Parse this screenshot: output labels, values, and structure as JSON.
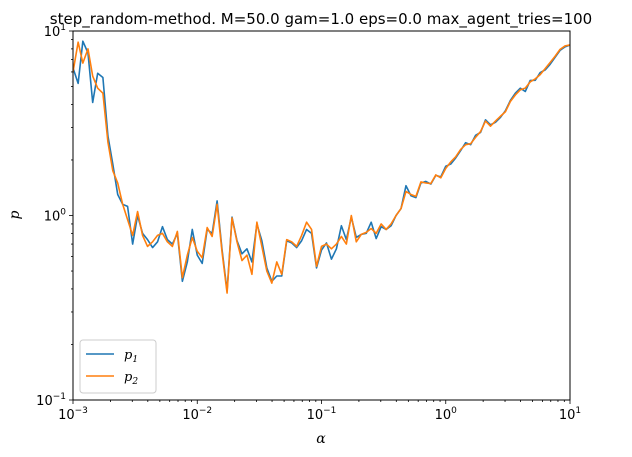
{
  "chart_data": {
    "type": "line",
    "title": "step_random-method. M=50.0 gam=1.0 eps=0.0 max_agent_tries=100",
    "xlabel": "α",
    "ylabel": "p",
    "xscale": "log",
    "yscale": "log",
    "xlim": [
      0.001,
      10
    ],
    "ylim": [
      0.1,
      10
    ],
    "grid": false,
    "legend_position": "lower-left",
    "x_ticks": [
      {
        "value": 0.001,
        "mantissa": "10",
        "exp": "−3"
      },
      {
        "value": 0.01,
        "mantissa": "10",
        "exp": "−2"
      },
      {
        "value": 0.1,
        "mantissa": "10",
        "exp": "−1"
      },
      {
        "value": 1,
        "mantissa": "10",
        "exp": "0"
      },
      {
        "value": 10,
        "mantissa": "10",
        "exp": "1"
      }
    ],
    "y_ticks": [
      {
        "value": 0.1,
        "mantissa": "10",
        "exp": "−1"
      },
      {
        "value": 1,
        "mantissa": "10",
        "exp": "0"
      },
      {
        "value": 10,
        "mantissa": "10",
        "exp": "1"
      }
    ],
    "series": [
      {
        "name": "p",
        "subscript": "1",
        "color": "#1f77b4",
        "points": [
          [
            0.001,
            6.3
          ],
          [
            0.0011,
            5.2
          ],
          [
            0.0012,
            8.8
          ],
          [
            0.00132,
            7.6
          ],
          [
            0.00144,
            4.1
          ],
          [
            0.00158,
            5.9
          ],
          [
            0.00174,
            5.6
          ],
          [
            0.00191,
            2.7
          ],
          [
            0.00209,
            1.9
          ],
          [
            0.00229,
            1.3
          ],
          [
            0.00251,
            1.15
          ],
          [
            0.00275,
            1.12
          ],
          [
            0.00302,
            0.7
          ],
          [
            0.00331,
            1.0
          ],
          [
            0.00363,
            0.8
          ],
          [
            0.00398,
            0.74
          ],
          [
            0.00437,
            0.67
          ],
          [
            0.00479,
            0.72
          ],
          [
            0.00525,
            0.87
          ],
          [
            0.00575,
            0.74
          ],
          [
            0.00631,
            0.7
          ],
          [
            0.00692,
            0.8
          ],
          [
            0.00759,
            0.44
          ],
          [
            0.00832,
            0.56
          ],
          [
            0.00912,
            0.84
          ],
          [
            0.01,
            0.61
          ],
          [
            0.01096,
            0.55
          ],
          [
            0.01202,
            0.84
          ],
          [
            0.01318,
            0.8
          ],
          [
            0.01445,
            1.2
          ],
          [
            0.01585,
            0.65
          ],
          [
            0.01738,
            0.39
          ],
          [
            0.01905,
            0.98
          ],
          [
            0.02089,
            0.73
          ],
          [
            0.02291,
            0.62
          ],
          [
            0.02512,
            0.66
          ],
          [
            0.02754,
            0.56
          ],
          [
            0.0302,
            0.9
          ],
          [
            0.03311,
            0.73
          ],
          [
            0.03631,
            0.52
          ],
          [
            0.03981,
            0.44
          ],
          [
            0.04365,
            0.47
          ],
          [
            0.04786,
            0.47
          ],
          [
            0.05248,
            0.73
          ],
          [
            0.05754,
            0.71
          ],
          [
            0.0631,
            0.67
          ],
          [
            0.06918,
            0.73
          ],
          [
            0.07586,
            0.84
          ],
          [
            0.08318,
            0.8
          ],
          [
            0.0912,
            0.52
          ],
          [
            0.1,
            0.65
          ],
          [
            0.10965,
            0.71
          ],
          [
            0.12023,
            0.58
          ],
          [
            0.13183,
            0.66
          ],
          [
            0.14454,
            0.88
          ],
          [
            0.15849,
            0.74
          ],
          [
            0.17378,
            0.98
          ],
          [
            0.19055,
            0.76
          ],
          [
            0.20893,
            0.79
          ],
          [
            0.22909,
            0.8
          ],
          [
            0.25119,
            0.92
          ],
          [
            0.27542,
            0.75
          ],
          [
            0.302,
            0.87
          ],
          [
            0.33113,
            0.84
          ],
          [
            0.36308,
            0.88
          ],
          [
            0.39811,
            1.0
          ],
          [
            0.43652,
            1.09
          ],
          [
            0.47863,
            1.45
          ],
          [
            0.52481,
            1.28
          ],
          [
            0.57544,
            1.25
          ],
          [
            0.63096,
            1.5
          ],
          [
            0.69183,
            1.53
          ],
          [
            0.75858,
            1.48
          ],
          [
            0.83176,
            1.65
          ],
          [
            0.91201,
            1.62
          ],
          [
            1.0,
            1.85
          ],
          [
            1.09648,
            1.9
          ],
          [
            1.20226,
            2.05
          ],
          [
            1.31826,
            2.25
          ],
          [
            1.44544,
            2.48
          ],
          [
            1.58489,
            2.42
          ],
          [
            1.7378,
            2.72
          ],
          [
            1.90546,
            2.82
          ],
          [
            2.0893,
            3.3
          ],
          [
            2.29087,
            3.1
          ],
          [
            2.51189,
            3.2
          ],
          [
            2.75423,
            3.4
          ],
          [
            3.01995,
            3.7
          ],
          [
            3.31131,
            4.2
          ],
          [
            3.63078,
            4.6
          ],
          [
            3.98107,
            4.9
          ],
          [
            4.36516,
            4.7
          ],
          [
            4.7863,
            5.4
          ],
          [
            5.24807,
            5.4
          ],
          [
            5.7544,
            5.95
          ],
          [
            6.30957,
            6.15
          ],
          [
            6.91831,
            6.6
          ],
          [
            7.58578,
            7.2
          ],
          [
            8.31764,
            7.85
          ],
          [
            9.12011,
            8.2
          ],
          [
            10.0,
            8.4
          ]
        ]
      },
      {
        "name": "p",
        "subscript": "2",
        "color": "#ff7f0e",
        "points": [
          [
            0.001,
            6.0
          ],
          [
            0.0011,
            8.7
          ],
          [
            0.0012,
            6.7
          ],
          [
            0.00132,
            8.0
          ],
          [
            0.00144,
            5.7
          ],
          [
            0.00158,
            4.9
          ],
          [
            0.00174,
            4.6
          ],
          [
            0.00191,
            2.5
          ],
          [
            0.00209,
            1.75
          ],
          [
            0.00229,
            1.5
          ],
          [
            0.00251,
            1.15
          ],
          [
            0.00275,
            0.95
          ],
          [
            0.00302,
            0.78
          ],
          [
            0.00331,
            1.05
          ],
          [
            0.00363,
            0.78
          ],
          [
            0.00398,
            0.68
          ],
          [
            0.00437,
            0.72
          ],
          [
            0.00479,
            0.78
          ],
          [
            0.00525,
            0.8
          ],
          [
            0.00575,
            0.72
          ],
          [
            0.00631,
            0.68
          ],
          [
            0.00692,
            0.82
          ],
          [
            0.00759,
            0.46
          ],
          [
            0.00832,
            0.61
          ],
          [
            0.00912,
            0.76
          ],
          [
            0.01,
            0.64
          ],
          [
            0.01096,
            0.59
          ],
          [
            0.01202,
            0.86
          ],
          [
            0.01318,
            0.77
          ],
          [
            0.01445,
            1.15
          ],
          [
            0.01585,
            0.63
          ],
          [
            0.01738,
            0.38
          ],
          [
            0.01905,
            0.97
          ],
          [
            0.02089,
            0.72
          ],
          [
            0.02291,
            0.57
          ],
          [
            0.02512,
            0.61
          ],
          [
            0.02754,
            0.48
          ],
          [
            0.0302,
            0.92
          ],
          [
            0.03311,
            0.68
          ],
          [
            0.03631,
            0.5
          ],
          [
            0.03981,
            0.43
          ],
          [
            0.04365,
            0.56
          ],
          [
            0.04786,
            0.48
          ],
          [
            0.05248,
            0.74
          ],
          [
            0.05754,
            0.72
          ],
          [
            0.0631,
            0.68
          ],
          [
            0.06918,
            0.78
          ],
          [
            0.07586,
            0.92
          ],
          [
            0.08318,
            0.84
          ],
          [
            0.0912,
            0.53
          ],
          [
            0.1,
            0.68
          ],
          [
            0.10965,
            0.7
          ],
          [
            0.12023,
            0.66
          ],
          [
            0.13183,
            0.7
          ],
          [
            0.14454,
            0.77
          ],
          [
            0.15849,
            0.7
          ],
          [
            0.17378,
            1.0
          ],
          [
            0.19055,
            0.72
          ],
          [
            0.20893,
            0.79
          ],
          [
            0.22909,
            0.81
          ],
          [
            0.25119,
            0.85
          ],
          [
            0.27542,
            0.8
          ],
          [
            0.302,
            0.9
          ],
          [
            0.33113,
            0.84
          ],
          [
            0.36308,
            0.9
          ],
          [
            0.39811,
            1.0
          ],
          [
            0.43652,
            1.09
          ],
          [
            0.47863,
            1.35
          ],
          [
            0.52481,
            1.3
          ],
          [
            0.57544,
            1.27
          ],
          [
            0.63096,
            1.52
          ],
          [
            0.69183,
            1.5
          ],
          [
            0.75858,
            1.49
          ],
          [
            0.83176,
            1.66
          ],
          [
            0.91201,
            1.6
          ],
          [
            1.0,
            1.8
          ],
          [
            1.09648,
            1.95
          ],
          [
            1.20226,
            2.08
          ],
          [
            1.31826,
            2.28
          ],
          [
            1.44544,
            2.42
          ],
          [
            1.58489,
            2.45
          ],
          [
            1.7378,
            2.65
          ],
          [
            1.90546,
            2.85
          ],
          [
            2.0893,
            3.25
          ],
          [
            2.29087,
            3.05
          ],
          [
            2.51189,
            3.25
          ],
          [
            2.75423,
            3.45
          ],
          [
            3.01995,
            3.65
          ],
          [
            3.31131,
            4.15
          ],
          [
            3.63078,
            4.5
          ],
          [
            3.98107,
            4.8
          ],
          [
            4.36516,
            4.9
          ],
          [
            4.7863,
            5.3
          ],
          [
            5.24807,
            5.5
          ],
          [
            5.7544,
            5.8
          ],
          [
            6.30957,
            6.25
          ],
          [
            6.91831,
            6.75
          ],
          [
            7.58578,
            7.3
          ],
          [
            8.31764,
            7.95
          ],
          [
            9.12011,
            8.3
          ],
          [
            10.0,
            8.4
          ]
        ]
      }
    ]
  }
}
